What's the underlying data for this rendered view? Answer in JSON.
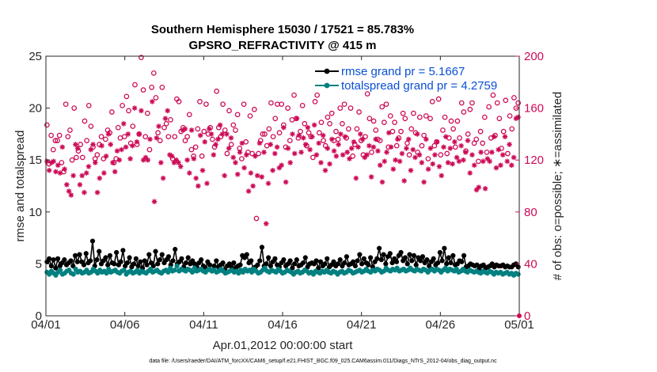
{
  "colors": {
    "rmse": "#000000",
    "totalspread": "#008080",
    "obs": "#cc0a56",
    "axis": "#262626"
  },
  "chart_data": {
    "type": "line",
    "title": "Southern Hemisphere 15030 / 17521 = 85.783%",
    "subtitle": "GPSRO_REFRACTIVITY @ 415 m",
    "xlabel": "Apr.01,2012 00:00:00 start",
    "ylabel_left": "rmse and totalspread",
    "ylabel_right": "# of obs: o=possible; ∗=assimilated",
    "footer": "data file: /Users/raeder/DAI/ATM_forcXX/CAM6_setup/f.e21.FHIST_BGC.f09_025.CAM6assim.011/Diags_NTrS_2012-04/obs_diag_output.nc",
    "xlim": [
      0,
      30
    ],
    "ylim_left": [
      0,
      25
    ],
    "ylim_right": [
      0,
      200
    ],
    "x_ticks": [
      0,
      5,
      10,
      15,
      20,
      25,
      30
    ],
    "x_tick_labels": [
      "04/01",
      "04/06",
      "04/11",
      "04/16",
      "04/21",
      "04/26",
      "05/01"
    ],
    "y_ticks_left": [
      0,
      5,
      10,
      15,
      20,
      25
    ],
    "y_ticks_right": [
      0,
      40,
      80,
      120,
      160,
      200
    ],
    "legend_position": "top-right",
    "series": [
      {
        "name": "rmse grand pr = 5.1667",
        "axis": "left",
        "marker": "dot-line",
        "values": [
          5.2,
          5.5,
          4.8,
          5.4,
          4.6,
          5.5,
          4.8,
          5.1,
          5.4,
          4.9,
          5.1,
          5.3,
          4.8,
          5.8,
          5.2,
          5.9,
          5.2,
          4.9,
          6.0,
          5.1,
          5.3,
          7.2,
          4.8,
          5.4,
          6.2,
          5.0,
          5.3,
          5.6,
          4.9,
          5.8,
          5.1,
          5.0,
          6.1,
          4.9,
          5.2,
          6.3,
          4.8,
          5.1,
          5.6,
          4.7,
          5.0,
          5.5,
          4.8,
          5.2,
          4.6,
          5.3,
          4.9,
          5.9,
          5.1,
          4.8,
          6.2,
          5.0,
          5.4,
          5.9,
          5.1,
          5.4,
          5.7,
          4.9,
          5.3,
          6.4,
          5.0,
          5.2,
          5.5,
          4.7,
          5.1,
          5.6,
          5.0,
          5.3,
          5.0,
          4.7,
          5.1,
          5.4,
          4.8,
          4.6,
          5.2,
          4.9,
          4.3,
          4.8,
          5.3,
          4.7,
          4.9,
          5.1,
          4.4,
          4.8,
          5.0,
          4.7,
          5.1,
          4.6,
          4.8,
          4.9,
          5.8,
          5.6,
          5.9,
          5.1,
          5.3,
          4.5,
          4.7,
          4.9,
          5.3,
          6.6,
          4.8,
          5.0,
          5.6,
          4.8,
          5.2,
          5.5,
          4.9,
          4.7,
          5.1,
          5.4,
          4.8,
          5.0,
          5.3,
          4.6,
          5.0,
          5.4,
          4.8,
          4.9,
          5.1,
          5.6,
          4.7,
          5.0,
          5.1,
          5.0,
          5.3,
          4.6,
          5.2,
          4.8,
          5.0,
          5.5,
          4.7,
          4.9,
          5.2,
          4.8,
          5.0,
          5.4,
          4.8,
          5.1,
          5.7,
          4.9,
          5.0,
          5.2,
          4.8,
          5.3,
          5.9,
          5.0,
          5.5,
          5.1,
          4.9,
          5.6,
          4.7,
          5.2,
          5.5,
          6.5,
          5.4,
          5.9,
          5.0,
          5.7,
          6.0,
          5.1,
          5.5,
          5.2,
          5.8,
          6.1,
          5.3,
          5.6,
          5.0,
          5.9,
          5.3,
          5.8,
          4.9,
          5.6,
          5.3,
          5.7,
          5.1,
          5.4,
          4.8,
          5.2,
          5.5,
          4.9,
          5.1,
          6.1,
          5.3,
          6.5,
          5.0,
          5.6,
          5.1,
          5.8,
          4.9,
          5.0,
          5.3,
          5.2,
          5.8,
          4.7,
          4.8,
          5.0,
          4.9,
          4.8,
          4.9,
          4.5,
          4.8,
          4.9,
          4.6,
          4.7,
          4.8,
          5.0,
          4.7,
          4.9,
          4.8,
          4.8,
          4.9,
          4.7,
          4.8,
          4.7,
          4.7,
          4.9,
          5.0,
          4.7
        ]
      },
      {
        "name": "totalspread grand pr = 4.2759",
        "axis": "left",
        "marker": "dot-line",
        "values": [
          4.2,
          4.0,
          4.3,
          4.1,
          3.9,
          4.2,
          4.4,
          4.0,
          4.1,
          4.3,
          4.4,
          4.1,
          4.0,
          4.5,
          4.2,
          4.3,
          4.1,
          4.2,
          4.4,
          4.1,
          4.2,
          4.5,
          4.3,
          4.1,
          4.4,
          4.2,
          4.3,
          4.1,
          4.5,
          4.2,
          4.3,
          4.4,
          4.2,
          4.1,
          4.3,
          4.4,
          4.0,
          4.2,
          4.3,
          4.1,
          4.2,
          4.4,
          4.1,
          4.3,
          4.2,
          4.1,
          4.3,
          4.5,
          4.2,
          4.3,
          4.4,
          4.2,
          4.1,
          4.3,
          4.4,
          4.2,
          4.6,
          4.3,
          4.4,
          4.8,
          4.3,
          4.5,
          4.4,
          4.3,
          4.5,
          4.4,
          4.2,
          4.6,
          4.3,
          4.4,
          4.5,
          4.3,
          4.2,
          4.4,
          4.5,
          4.3,
          4.4,
          4.2,
          4.3,
          4.5,
          4.3,
          4.1,
          4.2,
          4.3,
          4.4,
          4.2,
          4.3,
          4.1,
          4.4,
          4.2,
          4.5,
          4.3,
          4.4,
          4.2,
          4.5,
          4.3,
          4.1,
          4.2,
          4.4,
          4.6,
          4.3,
          4.2,
          4.4,
          4.3,
          4.2,
          4.5,
          4.3,
          4.1,
          4.2,
          4.4,
          4.3,
          4.2,
          4.0,
          4.2,
          4.3,
          4.1,
          4.2,
          4.4,
          4.3,
          4.1,
          4.2,
          4.0,
          4.3,
          4.2,
          4.1,
          4.3,
          4.2,
          4.4,
          4.2,
          4.1,
          4.3,
          4.2,
          4.0,
          4.2,
          4.3,
          4.1,
          4.2,
          4.4,
          4.3,
          4.1,
          4.2,
          4.3,
          4.4,
          4.2,
          4.3,
          4.5,
          4.3,
          4.2,
          4.4,
          4.3,
          4.5,
          4.4,
          4.2,
          4.3,
          4.6,
          4.4,
          4.3,
          4.5,
          4.4,
          4.6,
          4.3,
          4.4,
          4.5,
          4.3,
          4.4,
          4.6,
          4.4,
          4.3,
          4.5,
          4.4,
          4.3,
          4.5,
          4.4,
          4.2,
          4.4,
          4.5,
          4.3,
          4.5,
          4.4,
          4.2,
          4.4,
          4.6,
          4.3,
          4.5,
          4.4,
          4.3,
          4.5,
          4.2,
          4.3,
          4.5,
          4.3,
          4.2,
          4.4,
          4.3,
          4.2,
          4.3,
          4.2,
          4.1,
          4.3,
          4.2,
          4.1,
          4.3,
          4.2,
          4.0,
          4.2,
          4.1,
          4.2,
          4.0,
          4.1,
          4.2,
          4.0,
          4.1,
          3.9,
          4.1,
          4.0
        ]
      },
      {
        "name": "possible",
        "axis": "right",
        "marker": "circle",
        "values": [
          147,
          117,
          139,
          128,
          135,
          135,
          139,
          118,
          111,
          163,
          138,
          143,
          120,
          160,
          122,
          127,
          132,
          122,
          150,
          135,
          162,
          146,
          130,
          121,
          124,
          132,
          138,
          121,
          136,
          143,
          141,
          157,
          118,
          121,
          145,
          137,
          162,
          138,
          169,
          158,
          133,
          146,
          178,
          132,
          140,
          199,
          174,
          138,
          156,
          128,
          176,
          187,
          168,
          141,
          135,
          176,
          145,
          148,
          138,
          151,
          121,
          138,
          167,
          165,
          142,
          145,
          135,
          138,
          155,
          128,
          123,
          130,
          144,
          165,
          123,
          142,
          163,
          140,
          145,
          136,
          130,
          173,
          145,
          138,
          163,
          143,
          125,
          158,
          132,
          147,
          143,
          155,
          129,
          121,
          163,
          134,
          126,
          154,
          125,
          159,
          75,
          125,
          135,
          140,
          140,
          131,
          144,
          164,
          138,
          152,
          163,
          141,
          163,
          147,
          130,
          160,
          135,
          151,
          170,
          152,
          137,
          142,
          162,
          148,
          131,
          141,
          138,
          122,
          165,
          170,
          141,
          149,
          135,
          131,
          153,
          148,
          156,
          135,
          142,
          136,
          160,
          148,
          163,
          137,
          144,
          160,
          123,
          132,
          144,
          157,
          135,
          124,
          138,
          171,
          152,
          126,
          150,
          143,
          136,
          135,
          161,
          149,
          163,
          130,
          154,
          142,
          149,
          131,
          137,
          142,
          156,
          152,
          133,
          124,
          144,
          156,
          141,
          126,
          153,
          131,
          139,
          154,
          121,
          152,
          165,
          131,
          134,
          167,
          124,
          143,
          153,
          125,
          137,
          150,
          144,
          130,
          150,
          137,
          164,
          157,
          127,
          140,
          159,
          164,
          133,
          136,
          119,
          142,
          133,
          153,
          126,
          161,
          137,
          170,
          139,
          164,
          152,
          129,
          142,
          166,
          125,
          154,
          144,
          168,
          160,
          164
        ]
      },
      {
        "name": "assimilated",
        "axis": "right",
        "marker": "asterisk",
        "values": [
          119,
          112,
          118,
          119,
          111,
          116,
          110,
          130,
          113,
          101,
          96,
          93,
          108,
          132,
          129,
          101,
          108,
          95,
          110,
          115,
          128,
          132,
          118,
          95,
          106,
          131,
          110,
          123,
          140,
          132,
          118,
          111,
          127,
          120,
          128,
          148,
          130,
          140,
          121,
          131,
          160,
          134,
          140,
          158,
          120,
          122,
          120,
          136,
          165,
          88,
          137,
          146,
          118,
          106,
          152,
          158,
          124,
          123,
          118,
          120,
          118,
          115,
          143,
          144,
          120,
          110,
          143,
          121,
          106,
          100,
          139,
          112,
          134,
          102,
          144,
          140,
          124,
          132,
          136,
          147,
          140,
          108,
          140,
          129,
          137,
          122,
          118,
          109,
          126,
          133,
          114,
          124,
          96,
          110,
          100,
          123,
          108,
          133,
          107,
          126,
          71,
          102,
          132,
          112,
          125,
          130,
          114,
          116,
          145,
          103,
          129,
          118,
          140,
          125,
          152,
          139,
          126,
          137,
          132,
          145,
          128,
          138,
          147,
          124,
          133,
          118,
          139,
          112,
          129,
          117,
          136,
          127,
          123,
          132,
          140,
          124,
          138,
          126,
          121,
          129,
          134,
          106,
          130,
          140,
          136,
          122,
          124,
          131,
          107,
          130,
          136,
          127,
          116,
          103,
          119,
          126,
          141,
          130,
          113,
          120,
          136,
          119,
          125,
          104,
          129,
          136,
          112,
          128,
          122,
          140,
          124,
          118,
          103,
          136,
          113,
          129,
          117,
          124,
          134,
          115,
          108,
          130,
          138,
          118,
          129,
          117,
          134,
          122,
          119,
          131,
          120,
          126,
          135,
          110,
          124,
          116,
          97,
          99,
          126,
          119,
          98,
          121,
          119,
          126,
          138,
          114,
          128,
          116,
          124,
          138,
          119,
          132,
          116,
          122,
          152,
          153
        ]
      }
    ]
  }
}
